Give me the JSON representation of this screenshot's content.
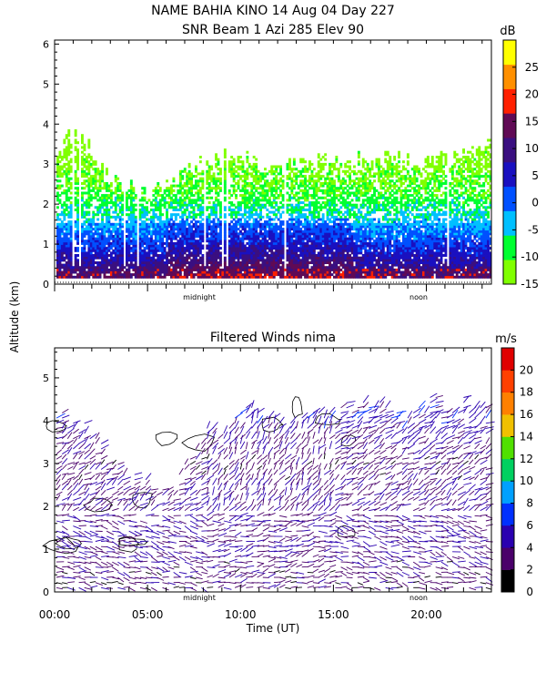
{
  "header": {
    "line1": "NAME BAHIA KINO  14 Aug 04 Day 227",
    "line2": "SNR Beam 1 Azi 285 Elev 90"
  },
  "ylabel": "Altitude (km)",
  "xlabel": "Time (UT)",
  "chart_data": [
    {
      "type": "heatmap",
      "title": "SNR Beam 1 Azi 285 Elev 90",
      "ylim": [
        0,
        6.1
      ],
      "xlim": [
        0,
        23.5
      ],
      "yticks": [
        "0",
        "1",
        "2",
        "3",
        "4",
        "5",
        "6"
      ],
      "time_markers": [
        "midnight",
        "noon"
      ],
      "colorbar": {
        "unit": "dB",
        "ticks": [
          "25",
          "20",
          "15",
          "10",
          "5",
          "0",
          "-5",
          "-10",
          "-15"
        ],
        "range": [
          -15,
          30
        ],
        "colors": [
          "#80ff00",
          "#00ff30",
          "#00c0ff",
          "#0050ff",
          "#1a10c0",
          "#3a0f80",
          "#600a55",
          "#ff2000",
          "#ff9000",
          "#ffff00"
        ]
      },
      "snr_profile": [
        {
          "altitude_km": 0.2,
          "snr_db": 12
        },
        {
          "altitude_km": 0.5,
          "snr_db": 8
        },
        {
          "altitude_km": 1.0,
          "snr_db": 2
        },
        {
          "altitude_km": 1.5,
          "snr_db": -3
        },
        {
          "altitude_km": 2.0,
          "snr_db": -8
        },
        {
          "altitude_km": 2.5,
          "snr_db": -11
        },
        {
          "altitude_km": 3.0,
          "snr_db": -13
        },
        {
          "altitude_km": 3.8,
          "snr_db": -14
        }
      ],
      "echo_top_km": [
        {
          "time_ut": 0,
          "top": 3.0
        },
        {
          "time_ut": 1,
          "top": 3.9
        },
        {
          "time_ut": 3,
          "top": 2.5
        },
        {
          "time_ut": 5,
          "top": 2.2
        },
        {
          "time_ut": 7,
          "top": 2.8
        },
        {
          "time_ut": 9,
          "top": 3.2
        },
        {
          "time_ut": 11,
          "top": 3.0
        },
        {
          "time_ut": 14,
          "top": 3.0
        },
        {
          "time_ut": 17,
          "top": 3.1
        },
        {
          "time_ut": 20,
          "top": 3.0
        },
        {
          "time_ut": 22,
          "top": 3.2
        },
        {
          "time_ut": 23.5,
          "top": 3.5
        }
      ]
    },
    {
      "type": "scatter",
      "title": "Filtered Winds nima",
      "ylim": [
        0,
        5.7
      ],
      "xlim": [
        0,
        23.5
      ],
      "yticks": [
        "0",
        "1",
        "2",
        "3",
        "4",
        "5"
      ],
      "xticks": [
        "00:00",
        "05:00",
        "10:00",
        "15:00",
        "20:00"
      ],
      "time_markers": [
        "midnight",
        "noon"
      ],
      "colorbar": {
        "unit": "m/s",
        "ticks": [
          "20",
          "18",
          "16",
          "14",
          "12",
          "10",
          "8",
          "6",
          "4",
          "2",
          "0"
        ],
        "range": [
          0,
          22
        ],
        "colors": [
          "#000000",
          "#4a006a",
          "#2a00b0",
          "#0030ff",
          "#00a0ff",
          "#00d060",
          "#50e000",
          "#f0c000",
          "#ff8000",
          "#ff4000",
          "#e00000"
        ]
      },
      "wind_profile": [
        {
          "altitude_km": 0.5,
          "speed_ms": 3
        },
        {
          "altitude_km": 1.0,
          "speed_ms": 4
        },
        {
          "altitude_km": 1.5,
          "speed_ms": 4
        },
        {
          "altitude_km": 2.0,
          "speed_ms": 4
        },
        {
          "altitude_km": 3.0,
          "speed_ms": 3
        },
        {
          "altitude_km": 4.0,
          "speed_ms": 5
        }
      ],
      "wind_top_km": [
        {
          "time_ut": 0,
          "top": 4.3
        },
        {
          "time_ut": 2,
          "top": 3.9
        },
        {
          "time_ut": 4,
          "top": 2.6
        },
        {
          "time_ut": 6,
          "top": 2.4
        },
        {
          "time_ut": 8,
          "top": 3.7
        },
        {
          "time_ut": 10,
          "top": 4.2
        },
        {
          "time_ut": 13,
          "top": 4.0
        },
        {
          "time_ut": 16,
          "top": 4.4
        },
        {
          "time_ut": 19,
          "top": 4.3
        },
        {
          "time_ut": 21,
          "top": 4.5
        },
        {
          "time_ut": 23.5,
          "top": 4.2
        }
      ]
    }
  ]
}
